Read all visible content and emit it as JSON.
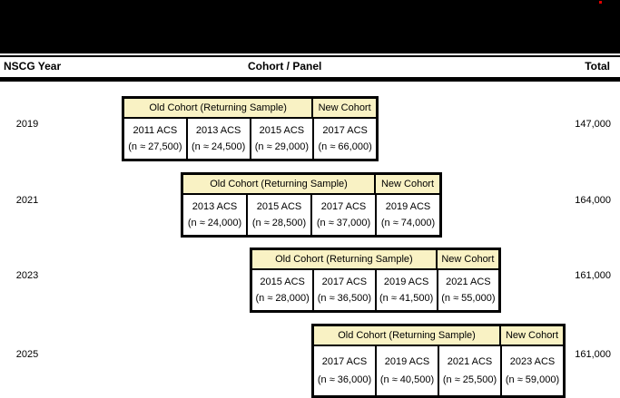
{
  "header": {
    "col_year": "NSCG Year",
    "col_cohort": "Cohort / Panel",
    "col_total": "Total"
  },
  "rows": [
    {
      "year": "2019",
      "total": "147,000",
      "old_cohort_label": "Old Cohort (Returning Sample)",
      "new_cohort_label": "New Cohort",
      "cells": [
        {
          "acs": "2011 ACS",
          "n": "(n ≈ 27,500)"
        },
        {
          "acs": "2013 ACS",
          "n": "(n ≈ 24,500)"
        },
        {
          "acs": "2015 ACS",
          "n": "(n ≈ 29,000)"
        },
        {
          "acs": "2017 ACS",
          "n": "(n ≈ 66,000)"
        }
      ]
    },
    {
      "year": "2021",
      "total": "164,000",
      "old_cohort_label": "Old Cohort (Returning Sample)",
      "new_cohort_label": "New Cohort",
      "cells": [
        {
          "acs": "2013 ACS",
          "n": "(n ≈ 24,000)"
        },
        {
          "acs": "2015 ACS",
          "n": "(n ≈ 28,500)"
        },
        {
          "acs": "2017 ACS",
          "n": "(n ≈ 37,000)"
        },
        {
          "acs": "2019 ACS",
          "n": "(n ≈ 74,000)"
        }
      ]
    },
    {
      "year": "2023",
      "total": "161,000",
      "old_cohort_label": "Old Cohort (Returning Sample)",
      "new_cohort_label": "New Cohort",
      "cells": [
        {
          "acs": "2015 ACS",
          "n": "(n ≈ 28,000)"
        },
        {
          "acs": "2017 ACS",
          "n": "(n ≈ 36,500)"
        },
        {
          "acs": "2019 ACS",
          "n": "(n ≈ 41,500)"
        },
        {
          "acs": "2021 ACS",
          "n": "(n ≈ 55,000)"
        }
      ]
    },
    {
      "year": "2025",
      "total": "161,000",
      "old_cohort_label": "Old Cohort (Returning Sample)",
      "new_cohort_label": "New Cohort",
      "cells": [
        {
          "acs": "2017 ACS",
          "n": "(n ≈ 36,000)"
        },
        {
          "acs": "2019 ACS",
          "n": "(n ≈ 40,500)"
        },
        {
          "acs": "2021 ACS",
          "n": "(n ≈ 25,500)"
        },
        {
          "acs": "2023 ACS",
          "n": "(n ≈ 59,000)"
        }
      ]
    }
  ],
  "colors": {
    "cohort_header_highlight": "#f9f2c4",
    "top_band": "#000000",
    "red_dot": "#e00000",
    "border": "#000000"
  }
}
